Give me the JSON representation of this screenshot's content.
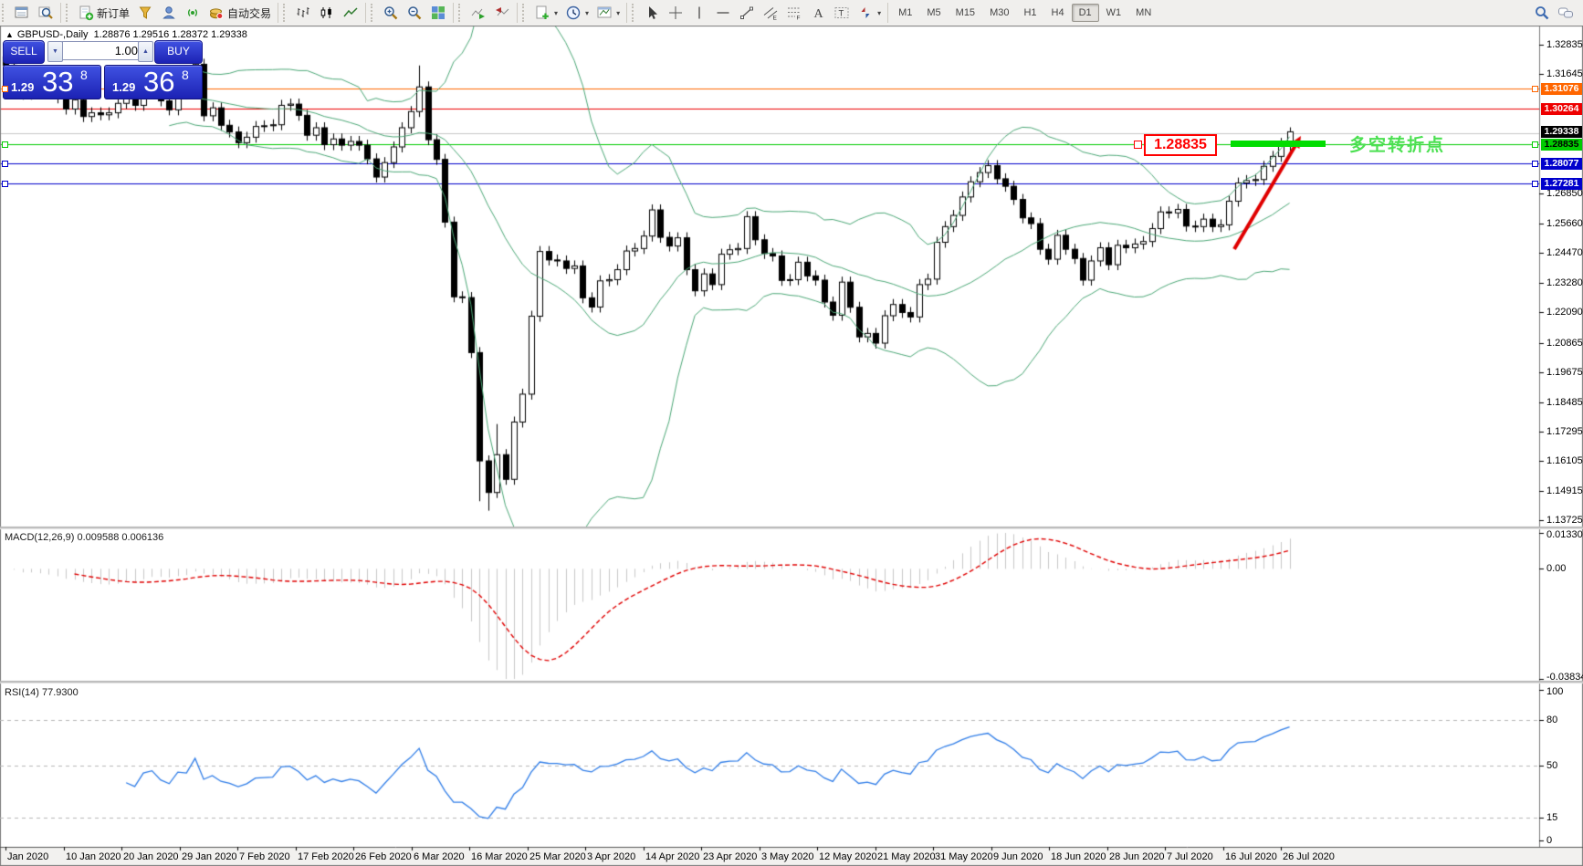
{
  "toolbar": {
    "groups": [
      {
        "items": [
          {
            "n": "market-watch"
          },
          {
            "n": "symbol-search"
          }
        ]
      },
      {
        "items": [
          {
            "n": "new-order",
            "label": "新订单"
          },
          {
            "n": "funnel"
          },
          {
            "n": "profile"
          },
          {
            "n": "signals"
          },
          {
            "n": "autotrading",
            "label": "自动交易"
          }
        ]
      },
      {
        "items": [
          {
            "n": "chart-bars"
          },
          {
            "n": "chart-candles"
          },
          {
            "n": "chart-line"
          }
        ]
      },
      {
        "items": [
          {
            "n": "zoom-in"
          },
          {
            "n": "zoom-out"
          },
          {
            "n": "tile-windows"
          }
        ]
      },
      {
        "items": [
          {
            "n": "auto-scroll"
          },
          {
            "n": "chart-shift"
          }
        ]
      },
      {
        "items": [
          {
            "n": "indicators",
            "caret": true
          },
          {
            "n": "periods",
            "caret": true
          },
          {
            "n": "templates",
            "caret": true
          }
        ]
      },
      {
        "items": [
          {
            "n": "cursor"
          },
          {
            "n": "crosshair"
          },
          {
            "n": "vertical-line"
          },
          {
            "n": "horizontal-line"
          },
          {
            "n": "trendline"
          },
          {
            "n": "channel"
          },
          {
            "n": "fibonacci"
          },
          {
            "n": "text"
          },
          {
            "n": "text-label"
          },
          {
            "n": "arrows",
            "caret": true
          }
        ]
      }
    ],
    "timeframes": [
      "M1",
      "M5",
      "M15",
      "M30",
      "H1",
      "H4",
      "D1",
      "W1",
      "MN"
    ],
    "selected_timeframe": "D1",
    "right_icons": [
      {
        "n": "search"
      },
      {
        "n": "chat"
      }
    ]
  },
  "chart": {
    "symbol_marker": "▲",
    "title": "GBPUSD-,Daily",
    "ohlc_text": "1.28876 1.29516 1.28372 1.29338"
  },
  "one_click": {
    "sell_label": "SELL",
    "buy_label": "BUY",
    "volume": "1.00",
    "sell_small": "1.29",
    "sell_big": "33",
    "sell_sup": "8",
    "buy_small": "1.29",
    "buy_big": "36",
    "buy_sup": "8"
  },
  "chart_data": {
    "type": "candlestick",
    "symbol": "GBPUSD",
    "timeframe": "Daily",
    "last_bar": {
      "open": 1.28876,
      "high": 1.29516,
      "low": 1.28372,
      "close": 1.29338
    },
    "closes": [
      1.32,
      1.3165,
      1.3085,
      1.3165,
      1.313,
      1.3105,
      1.307,
      1.3025,
      1.3062,
      1.2995,
      1.301,
      1.3002,
      1.301,
      1.3048,
      1.3075,
      1.304,
      1.312,
      1.3135,
      1.3058,
      1.3022,
      1.3098,
      1.309,
      1.3205,
      1.2998,
      1.303,
      1.296,
      1.2933,
      1.289,
      1.2912,
      1.2955,
      1.2958,
      1.2962,
      1.304,
      1.3045,
      1.3,
      1.292,
      1.295,
      1.2882,
      1.2905,
      1.288,
      1.2895,
      1.288,
      1.2825,
      1.2752,
      1.281,
      1.2873,
      1.295,
      1.3015,
      1.3114,
      1.2902,
      1.2823,
      1.2571,
      1.2271,
      1.2268,
      1.2047,
      1.1612,
      1.1485,
      1.1637,
      1.1538,
      1.1768,
      1.188,
      1.2193,
      1.2453,
      1.2419,
      1.2415,
      1.2385,
      1.2395,
      1.2267,
      1.223,
      1.2335,
      1.234,
      1.238,
      1.2455,
      1.2465,
      1.2515,
      1.262,
      1.251,
      1.2475,
      1.2508,
      1.238,
      1.2295,
      1.2363,
      1.232,
      1.2442,
      1.246,
      1.2465,
      1.2593,
      1.25,
      1.2445,
      1.2435,
      1.2337,
      1.234,
      1.241,
      1.2355,
      1.2338,
      1.225,
      1.2197,
      1.233,
      1.2229,
      1.211,
      1.2124,
      1.2085,
      1.2195,
      1.224,
      1.2208,
      1.219,
      1.232,
      1.2342,
      1.249,
      1.2553,
      1.2598,
      1.2672,
      1.2733,
      1.277,
      1.2798,
      1.2745,
      1.2715,
      1.2662,
      1.2588,
      1.2565,
      1.2462,
      1.2422,
      1.2518,
      1.2462,
      1.2425,
      1.2338,
      1.2415,
      1.2468,
      1.24,
      1.2478,
      1.2468,
      1.2483,
      1.2493,
      1.2545,
      1.2612,
      1.2608,
      1.2622,
      1.2555,
      1.2553,
      1.2583,
      1.2553,
      1.256,
      1.2655,
      1.2728,
      1.2738,
      1.2742,
      1.2795,
      1.2835,
      1.2887,
      1.29338
    ],
    "wick_pad": 0.0022,
    "overrides": {
      "0": {
        "o": 1.3235,
        "h": 1.3284
      },
      "48": {
        "h": 1.32
      },
      "55": {
        "l": 1.145
      },
      "56": {
        "l": 1.1412
      },
      "57": {
        "h": 1.176
      },
      "149": {
        "o": 1.28876,
        "h": 1.29516,
        "l": 1.28372
      }
    },
    "bollinger": {
      "period": 20,
      "deviation": 2,
      "color": "#4ca877"
    },
    "price_axis_ticks": [
      "1.32835",
      "1.31645",
      "1.26850",
      "1.25660",
      "1.24470",
      "1.23280",
      "1.22090",
      "1.20865",
      "1.19675",
      "1.18485",
      "1.17295",
      "1.16105",
      "1.14915",
      "1.13725"
    ],
    "price_labels": [
      {
        "text": "1.31076",
        "bg": "#ff6600",
        "fg": "#ffffff",
        "line": true,
        "sq": true
      },
      {
        "text": "1.30264",
        "bg": "#ee0000",
        "fg": "#ffffff",
        "line": true,
        "sq": false
      },
      {
        "text": "1.29338",
        "bg": "#000000",
        "fg": "#ffffff",
        "line": false,
        "sq": false
      },
      {
        "text": "1.28835",
        "bg": "#00cc00",
        "fg": "#000000",
        "line": true,
        "sq": true
      },
      {
        "text": "1.28077",
        "bg": "#0000cc",
        "fg": "#ffffff",
        "line": true,
        "sq": true
      },
      {
        "text": "1.27281",
        "bg": "#0000cc",
        "fg": "#ffffff",
        "line": true,
        "sq": true
      }
    ],
    "extra_hline": {
      "price": 1.2928,
      "color": "#c8c8c8"
    },
    "macd": {
      "label": "MACD(12,26,9) 0.009588 0.006136",
      "params": "12,26,9",
      "value": "0.009588",
      "signal_value": "0.006136",
      "axis": [
        "0.013301",
        "0.00",
        "-0.038343"
      ],
      "hist_color": "#c8c8c8",
      "signal_color": "#e00000"
    },
    "rsi": {
      "label": "RSI(14) 77.9300",
      "params": "14",
      "value": "77.9300",
      "axis": [
        "100",
        "80",
        "50",
        "15",
        "0"
      ],
      "levels": [
        80,
        50,
        15
      ],
      "color": "#2f7de8"
    },
    "date_labels": [
      "Jan 2020",
      "10 Jan 2020",
      "20 Jan 2020",
      "29 Jan 2020",
      "7 Feb 2020",
      "17 Feb 2020",
      "26 Feb 2020",
      "6 Mar 2020",
      "16 Mar 2020",
      "25 Mar 2020",
      "3 Apr 2020",
      "14 Apr 2020",
      "23 Apr 2020",
      "3 May 2020",
      "12 May 2020",
      "21 May 2020",
      "31 May 2020",
      "9 Jun 2020",
      "18 Jun 2020",
      "28 Jun 2020",
      "7 Jul 2020",
      "16 Jul 2020",
      "26 Jul 2020"
    ],
    "annotations": {
      "level_box_text": "1.28835",
      "level_box_color": "#ff0000",
      "note_text": "多空转折点",
      "note_color": "#4ce052",
      "bar_color": "#00dd00",
      "arrow_color": "#e00000"
    }
  }
}
